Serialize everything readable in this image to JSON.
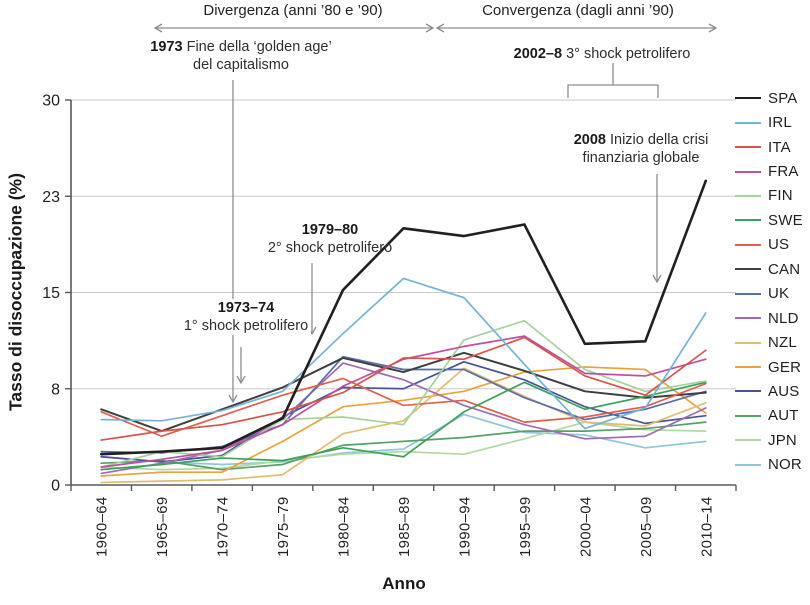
{
  "chart_data": {
    "type": "line",
    "title": "",
    "xlabel": "Anno",
    "ylabel": "Tasso di disoccupazione (%)",
    "ylim": [
      0,
      30
    ],
    "grid": "horizontal",
    "legend_position": "right",
    "yticks": [
      {
        "label": "0",
        "value": 0
      },
      {
        "label": "8",
        "value": 7.5
      },
      {
        "label": "15",
        "value": 15
      },
      {
        "label": "23",
        "value": 22.5
      },
      {
        "label": "30",
        "value": 30
      }
    ],
    "categories": [
      "1960–64",
      "1965–69",
      "1970–74",
      "1975–79",
      "1980–84",
      "1985–89",
      "1990–94",
      "1995–99",
      "2000–04",
      "2005–09",
      "2010–14"
    ],
    "series": [
      {
        "name": "SPA",
        "color": "#231f20",
        "width": 2.6,
        "values": [
          2.4,
          2.6,
          2.9,
          5.2,
          15.2,
          20.0,
          19.4,
          20.3,
          11.0,
          11.2,
          23.7
        ]
      },
      {
        "name": "IRL",
        "color": "#74b3d8",
        "width": 1.7,
        "values": [
          5.1,
          5.0,
          5.8,
          7.3,
          11.8,
          16.1,
          14.6,
          9.4,
          4.4,
          6.0,
          13.4
        ]
      },
      {
        "name": "ITA",
        "color": "#d6554a",
        "width": 1.7,
        "values": [
          3.5,
          4.2,
          4.7,
          5.7,
          7.2,
          9.9,
          9.8,
          11.5,
          8.5,
          7.0,
          10.5
        ]
      },
      {
        "name": "FRA",
        "color": "#bf4fa0",
        "width": 1.7,
        "values": [
          1.4,
          2.0,
          2.7,
          4.7,
          7.7,
          9.8,
          10.8,
          11.6,
          8.7,
          8.5,
          9.8
        ]
      },
      {
        "name": "FIN",
        "color": "#a3d39c",
        "width": 1.7,
        "values": [
          1.4,
          2.6,
          2.2,
          5.1,
          5.3,
          4.7,
          11.3,
          12.8,
          9.0,
          7.3,
          8.1
        ]
      },
      {
        "name": "SWE",
        "color": "#3ba156",
        "width": 1.7,
        "values": [
          1.2,
          1.6,
          2.1,
          1.9,
          2.9,
          2.2,
          5.7,
          8.0,
          5.9,
          6.9,
          8.0
        ]
      },
      {
        "name": "US",
        "color": "#e0604a",
        "width": 1.7,
        "values": [
          5.7,
          3.8,
          5.4,
          7.0,
          8.3,
          6.2,
          6.6,
          4.9,
          5.3,
          6.1,
          7.9
        ]
      },
      {
        "name": "CAN",
        "color": "#3f3f41",
        "width": 2.0,
        "values": [
          5.9,
          4.2,
          5.9,
          7.6,
          9.9,
          8.8,
          10.3,
          8.9,
          7.3,
          6.8,
          7.2
        ]
      },
      {
        "name": "UK",
        "color": "#5a6cab",
        "width": 1.7,
        "values": [
          2.6,
          2.5,
          3.0,
          4.7,
          10.0,
          9.0,
          9.0,
          6.8,
          5.1,
          5.9,
          7.3
        ]
      },
      {
        "name": "NLD",
        "color": "#9e6cb4",
        "width": 1.7,
        "values": [
          0.9,
          1.7,
          2.7,
          5.1,
          9.5,
          8.2,
          6.2,
          4.7,
          3.6,
          3.8,
          6.0
        ]
      },
      {
        "name": "NZL",
        "color": "#e0bc70",
        "width": 1.7,
        "values": [
          0.2,
          0.3,
          0.4,
          0.8,
          4.0,
          5.0,
          9.1,
          6.9,
          4.9,
          4.6,
          6.4
        ]
      },
      {
        "name": "GER",
        "color": "#eaa23d",
        "width": 1.7,
        "values": [
          0.7,
          1.0,
          1.0,
          3.4,
          6.1,
          6.6,
          7.3,
          8.8,
          9.2,
          9.0,
          5.6
        ]
      },
      {
        "name": "AUS",
        "color": "#46549c",
        "width": 1.7,
        "values": [
          2.2,
          1.8,
          2.3,
          5.3,
          7.6,
          7.5,
          9.6,
          8.2,
          6.1,
          4.8,
          5.4
        ]
      },
      {
        "name": "AUT",
        "color": "#55a169",
        "width": 1.7,
        "values": [
          1.7,
          1.9,
          1.2,
          1.6,
          3.1,
          3.4,
          3.7,
          4.2,
          4.2,
          4.4,
          4.9
        ]
      },
      {
        "name": "JPN",
        "color": "#b3d8a3",
        "width": 1.7,
        "values": [
          1.4,
          1.2,
          1.3,
          1.9,
          2.4,
          2.6,
          2.4,
          3.6,
          4.9,
          4.3,
          4.2
        ]
      },
      {
        "name": "NOR",
        "color": "#8ec6db",
        "width": 1.7,
        "values": [
          2.2,
          1.8,
          1.6,
          1.8,
          2.5,
          2.8,
          5.5,
          4.1,
          3.9,
          2.9,
          3.4
        ]
      }
    ],
    "annotations": {
      "divergenza": {
        "text": "Divergenza (anni ’80 e ’90)"
      },
      "convergenza": {
        "text": "Convergenza (dagli anni ’90)"
      },
      "golden_age": {
        "bold": "1973",
        "rest": " Fine della ‘golden age’",
        "line2": "del capitalismo"
      },
      "shock1": {
        "bold": "1973–74",
        "line2": "1° shock petrolifero"
      },
      "shock2": {
        "bold": "1979–80",
        "line2": "2° shock petrolifero"
      },
      "shock3": {
        "bold": "2002–8",
        "rest": " 3° shock petrolifero"
      },
      "crisis2008": {
        "bold": "2008",
        "rest": " Inizio della crisi",
        "line2": "finanziaria globale"
      }
    }
  }
}
